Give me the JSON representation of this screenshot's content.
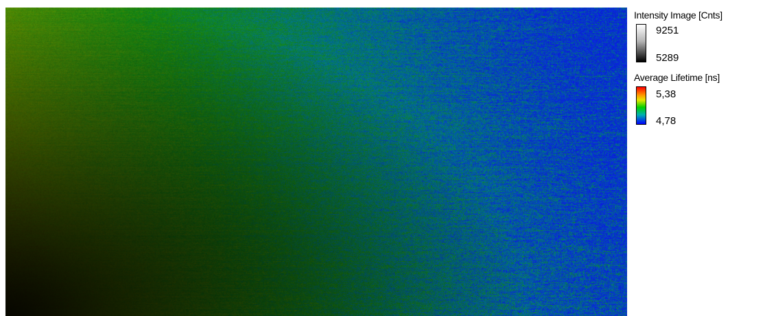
{
  "image": {
    "description_icon": "flim-lifetime-image",
    "colors": {
      "dark_corner": "#120400",
      "brown": "#5c3a06",
      "green": "#2f9a14",
      "bright_green": "#3fb528",
      "blue": "#1a3cff"
    }
  },
  "legend": {
    "intensity": {
      "title": "Intensity Image [Cnts]",
      "max": "9251",
      "min": "5289",
      "colors": {
        "top": "#ffffff",
        "bottom": "#000000"
      }
    },
    "lifetime": {
      "title": "Average Lifetime [ns]",
      "max": "5,38",
      "min": "4,78",
      "colors": {
        "top": "#ff0000",
        "middle": "#00d000",
        "bottom": "#0000ff"
      }
    }
  }
}
